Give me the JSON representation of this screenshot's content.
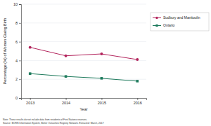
{
  "chart_data": {
    "type": "line",
    "y_label": "Percentage (%) of Women Giving Birth",
    "x_label": "Year",
    "x": [
      2013,
      2014,
      2015,
      2016
    ],
    "xlim": [
      2012.75,
      2016.25
    ],
    "xticks": [
      2013,
      2014,
      2015,
      2016
    ],
    "ylim": [
      0,
      10
    ],
    "yticks": [
      0,
      2,
      4,
      6,
      8,
      10
    ],
    "grid": true,
    "legend": "right",
    "series": [
      {
        "name": "Sudbury and Manitoulin",
        "color": "#b3245c",
        "marker": "circle",
        "line_style": "solid",
        "values": [
          5.4,
          4.5,
          4.7,
          4.1
        ]
      },
      {
        "name": "Ontario",
        "color": "#1d7a5c",
        "marker": "square",
        "line_style": "solid",
        "values": [
          2.6,
          2.3,
          2.1,
          1.8
        ]
      }
    ],
    "notes": [
      "Note: These results do not include data from residents of First Nations reserves.",
      "Source: BORN Information System, Better Outcomes Registry Network. Extracted: March, 2017"
    ]
  }
}
